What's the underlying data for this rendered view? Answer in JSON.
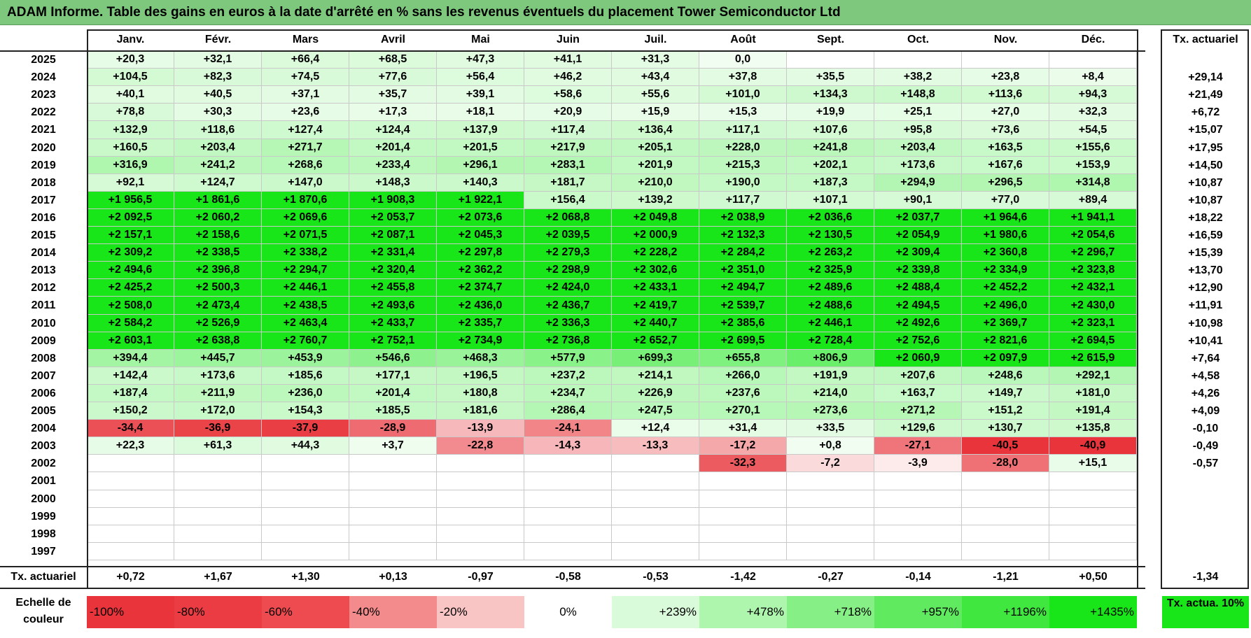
{
  "title": "ADAM Informe. Table des gains en euros à la date d'arrêté en % sans les revenus éventuels du placement Tower Semiconductor Ltd",
  "chart_data": {
    "type": "heatmap",
    "columns": [
      "Janv.",
      "Févr.",
      "Mars",
      "Avril",
      "Mai",
      "Juin",
      "Juil.",
      "Août",
      "Sept.",
      "Oct.",
      "Nov.",
      "Déc."
    ],
    "annual_header": "Tx. actuariel",
    "rows": [
      {
        "year": "2025",
        "values": [
          "+20,3",
          "+32,1",
          "+66,4",
          "+68,5",
          "+47,3",
          "+41,1",
          "+31,3",
          "0,0",
          "",
          "",
          "",
          ""
        ],
        "annual": ""
      },
      {
        "year": "2024",
        "values": [
          "+104,5",
          "+82,3",
          "+74,5",
          "+77,6",
          "+56,4",
          "+46,2",
          "+43,4",
          "+37,8",
          "+35,5",
          "+38,2",
          "+23,8",
          "+8,4"
        ],
        "annual": "+29,14"
      },
      {
        "year": "2023",
        "values": [
          "+40,1",
          "+40,5",
          "+37,1",
          "+35,7",
          "+39,1",
          "+58,6",
          "+55,6",
          "+101,0",
          "+134,3",
          "+148,8",
          "+113,6",
          "+94,3"
        ],
        "annual": "+21,49"
      },
      {
        "year": "2022",
        "values": [
          "+78,8",
          "+30,3",
          "+23,6",
          "+17,3",
          "+18,1",
          "+20,9",
          "+15,9",
          "+15,3",
          "+19,9",
          "+25,1",
          "+27,0",
          "+32,3"
        ],
        "annual": "+6,72"
      },
      {
        "year": "2021",
        "values": [
          "+132,9",
          "+118,6",
          "+127,4",
          "+124,4",
          "+137,9",
          "+117,4",
          "+136,4",
          "+117,1",
          "+107,6",
          "+95,8",
          "+73,6",
          "+54,5"
        ],
        "annual": "+15,07"
      },
      {
        "year": "2020",
        "values": [
          "+160,5",
          "+203,4",
          "+271,7",
          "+201,4",
          "+201,5",
          "+217,9",
          "+205,1",
          "+228,0",
          "+241,8",
          "+203,4",
          "+163,5",
          "+155,6"
        ],
        "annual": "+17,95"
      },
      {
        "year": "2019",
        "values": [
          "+316,9",
          "+241,2",
          "+268,6",
          "+233,4",
          "+296,1",
          "+283,1",
          "+201,9",
          "+215,3",
          "+202,1",
          "+173,6",
          "+167,6",
          "+153,9"
        ],
        "annual": "+14,50"
      },
      {
        "year": "2018",
        "values": [
          "+92,1",
          "+124,7",
          "+147,0",
          "+148,3",
          "+140,3",
          "+181,7",
          "+210,0",
          "+190,0",
          "+187,3",
          "+294,9",
          "+296,5",
          "+314,8"
        ],
        "annual": "+10,87"
      },
      {
        "year": "2017",
        "values": [
          "+1 956,5",
          "+1 861,6",
          "+1 870,6",
          "+1 908,3",
          "+1 922,1",
          "+156,4",
          "+139,2",
          "+117,7",
          "+107,1",
          "+90,1",
          "+77,0",
          "+89,4"
        ],
        "annual": "+10,87"
      },
      {
        "year": "2016",
        "values": [
          "+2 092,5",
          "+2 060,2",
          "+2 069,6",
          "+2 053,7",
          "+2 073,6",
          "+2 068,8",
          "+2 049,8",
          "+2 038,9",
          "+2 036,6",
          "+2 037,7",
          "+1 964,6",
          "+1 941,1"
        ],
        "annual": "+18,22"
      },
      {
        "year": "2015",
        "values": [
          "+2 157,1",
          "+2 158,6",
          "+2 071,5",
          "+2 087,1",
          "+2 045,3",
          "+2 039,5",
          "+2 000,9",
          "+2 132,3",
          "+2 130,5",
          "+2 054,9",
          "+1 980,6",
          "+2 054,6"
        ],
        "annual": "+16,59"
      },
      {
        "year": "2014",
        "values": [
          "+2 309,2",
          "+2 338,5",
          "+2 338,2",
          "+2 331,4",
          "+2 297,8",
          "+2 279,3",
          "+2 228,2",
          "+2 284,2",
          "+2 263,2",
          "+2 309,4",
          "+2 360,8",
          "+2 296,7"
        ],
        "annual": "+15,39"
      },
      {
        "year": "2013",
        "values": [
          "+2 494,6",
          "+2 396,8",
          "+2 294,7",
          "+2 320,4",
          "+2 362,2",
          "+2 298,9",
          "+2 302,6",
          "+2 351,0",
          "+2 325,9",
          "+2 339,8",
          "+2 334,9",
          "+2 323,8"
        ],
        "annual": "+13,70"
      },
      {
        "year": "2012",
        "values": [
          "+2 425,2",
          "+2 500,3",
          "+2 446,1",
          "+2 455,8",
          "+2 374,7",
          "+2 424,0",
          "+2 433,1",
          "+2 494,7",
          "+2 489,6",
          "+2 488,4",
          "+2 452,2",
          "+2 432,1"
        ],
        "annual": "+12,90"
      },
      {
        "year": "2011",
        "values": [
          "+2 508,0",
          "+2 473,4",
          "+2 438,5",
          "+2 493,6",
          "+2 436,0",
          "+2 436,7",
          "+2 419,7",
          "+2 539,7",
          "+2 488,6",
          "+2 494,5",
          "+2 496,0",
          "+2 430,0"
        ],
        "annual": "+11,91"
      },
      {
        "year": "2010",
        "values": [
          "+2 584,2",
          "+2 526,9",
          "+2 463,4",
          "+2 433,7",
          "+2 335,7",
          "+2 336,3",
          "+2 440,7",
          "+2 385,6",
          "+2 446,1",
          "+2 492,6",
          "+2 369,7",
          "+2 323,1"
        ],
        "annual": "+10,98"
      },
      {
        "year": "2009",
        "values": [
          "+2 603,1",
          "+2 638,8",
          "+2 760,7",
          "+2 752,1",
          "+2 734,9",
          "+2 736,8",
          "+2 652,7",
          "+2 699,5",
          "+2 728,4",
          "+2 752,6",
          "+2 821,6",
          "+2 694,5"
        ],
        "annual": "+10,41"
      },
      {
        "year": "2008",
        "values": [
          "+394,4",
          "+445,7",
          "+453,9",
          "+546,6",
          "+468,3",
          "+577,9",
          "+699,3",
          "+655,8",
          "+806,9",
          "+2 060,9",
          "+2 097,9",
          "+2 615,9"
        ],
        "annual": "+7,64"
      },
      {
        "year": "2007",
        "values": [
          "+142,4",
          "+173,6",
          "+185,6",
          "+177,1",
          "+196,5",
          "+237,2",
          "+214,1",
          "+266,0",
          "+191,9",
          "+207,6",
          "+248,6",
          "+292,1"
        ],
        "annual": "+4,58"
      },
      {
        "year": "2006",
        "values": [
          "+187,4",
          "+211,9",
          "+236,0",
          "+201,4",
          "+180,8",
          "+234,7",
          "+226,9",
          "+237,6",
          "+214,0",
          "+163,7",
          "+149,7",
          "+181,0"
        ],
        "annual": "+4,26"
      },
      {
        "year": "2005",
        "values": [
          "+150,2",
          "+172,0",
          "+154,3",
          "+185,5",
          "+181,6",
          "+286,4",
          "+247,5",
          "+270,1",
          "+273,6",
          "+271,2",
          "+151,2",
          "+191,4"
        ],
        "annual": "+4,09"
      },
      {
        "year": "2004",
        "values": [
          "-34,4",
          "-36,9",
          "-37,9",
          "-28,9",
          "-13,9",
          "-24,1",
          "+12,4",
          "+31,4",
          "+33,5",
          "+129,6",
          "+130,7",
          "+135,8"
        ],
        "annual": "-0,10"
      },
      {
        "year": "2003",
        "values": [
          "+22,3",
          "+61,3",
          "+44,3",
          "+3,7",
          "-22,8",
          "-14,3",
          "-13,3",
          "-17,2",
          "+0,8",
          "-27,1",
          "-40,5",
          "-40,9"
        ],
        "annual": "-0,49"
      },
      {
        "year": "2002",
        "values": [
          "",
          "",
          "",
          "",
          "",
          "",
          "",
          "-32,3",
          "-7,2",
          "-3,9",
          "-28,0",
          "+15,1"
        ],
        "annual": "-0,57"
      },
      {
        "year": "2001",
        "values": [
          "",
          "",
          "",
          "",
          "",
          "",
          "",
          "",
          "",
          "",
          "",
          ""
        ],
        "annual": ""
      },
      {
        "year": "2000",
        "values": [
          "",
          "",
          "",
          "",
          "",
          "",
          "",
          "",
          "",
          "",
          "",
          ""
        ],
        "annual": ""
      },
      {
        "year": "1999",
        "values": [
          "",
          "",
          "",
          "",
          "",
          "",
          "",
          "",
          "",
          "",
          "",
          ""
        ],
        "annual": ""
      },
      {
        "year": "1998",
        "values": [
          "",
          "",
          "",
          "",
          "",
          "",
          "",
          "",
          "",
          "",
          "",
          ""
        ],
        "annual": ""
      },
      {
        "year": "1997",
        "values": [
          "",
          "",
          "",
          "",
          "",
          "",
          "",
          "",
          "",
          "",
          "",
          ""
        ],
        "annual": ""
      }
    ],
    "footer_label": "Tx. actuariel",
    "footer_values": [
      "+0,72",
      "+1,67",
      "+1,30",
      "+0,13",
      "-0,97",
      "-0,58",
      "-0,53",
      "-1,42",
      "-0,27",
      "-0,14",
      "-1,21",
      "+0,50"
    ],
    "footer_annual": "-1,34",
    "legend": {
      "label": "Echelle de couleur",
      "steps": [
        {
          "text": "-100%",
          "color": "#e8343a"
        },
        {
          "text": "-80%",
          "color": "#ea3c42"
        },
        {
          "text": "-60%",
          "color": "#ee4b50"
        },
        {
          "text": "-40%",
          "color": "#f38a8c"
        },
        {
          "text": "-20%",
          "color": "#f9c4c4"
        },
        {
          "text": "0%",
          "color": "#ffffff"
        },
        {
          "text": "+239%",
          "color": "#d9fbd9"
        },
        {
          "text": "+478%",
          "color": "#aef5ae"
        },
        {
          "text": "+718%",
          "color": "#86f086"
        },
        {
          "text": "+957%",
          "color": "#5fea5f"
        },
        {
          "text": "+1196%",
          "color": "#3fe73f"
        },
        {
          "text": "+1435%",
          "color": "#19e619"
        }
      ],
      "tx_label": "Tx. actua. 10%",
      "tx_color": "#19e619"
    }
  }
}
